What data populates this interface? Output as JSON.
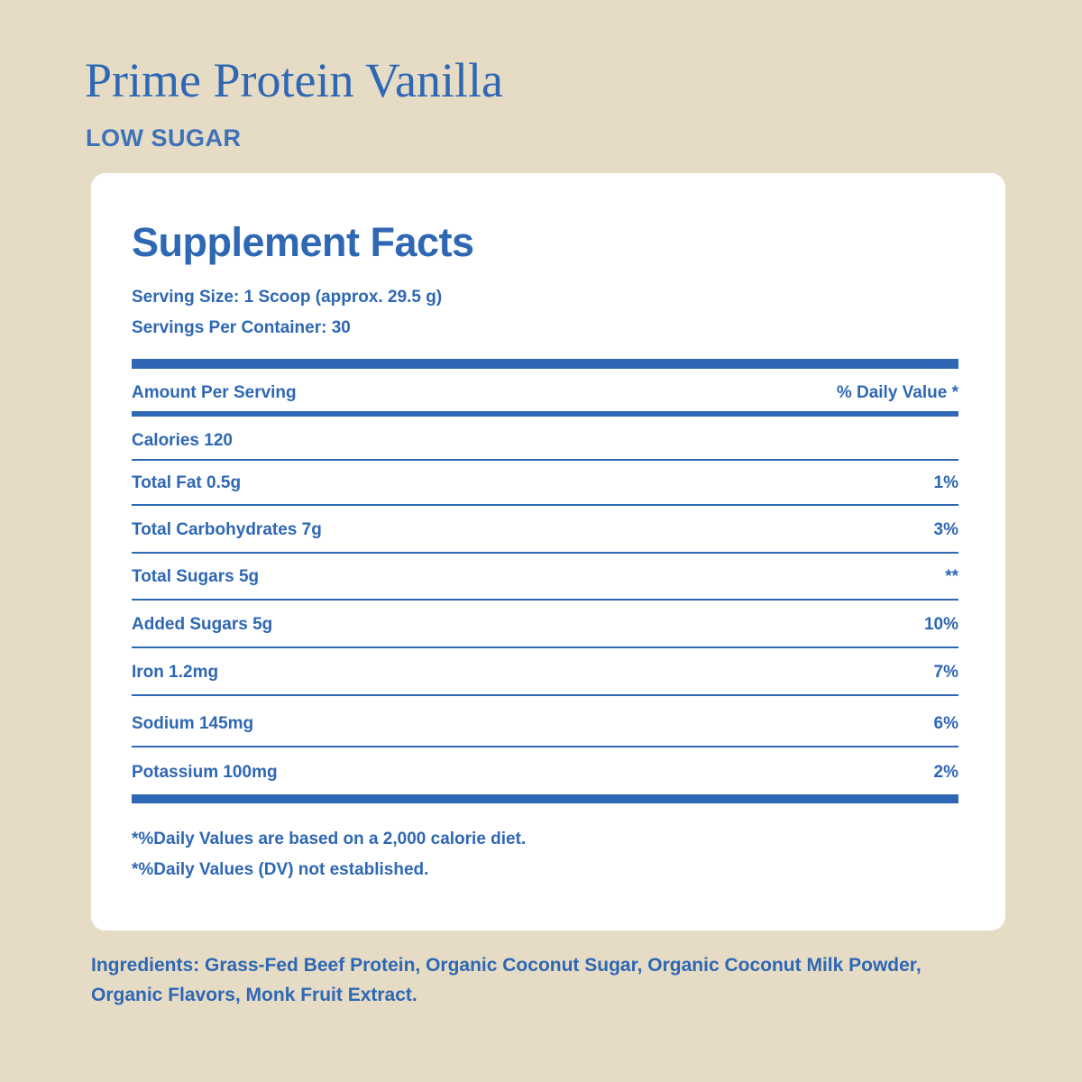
{
  "header": {
    "title": "Prime Protein Vanilla",
    "subtitle": "LOW SUGAR"
  },
  "facts": {
    "title": "Supplement Facts",
    "serving_size": "Serving Size: 1 Scoop (approx. 29.5 g)",
    "servings_per_container": "Servings Per Container: 30",
    "column_left": "Amount Per Serving",
    "column_right": "% Daily Value *",
    "rows": [
      {
        "label": "Calories 120"
      },
      {
        "label": "Total Fat 0.5g",
        "dv": "1%"
      },
      {
        "label": "Total Carbohydrates 7g",
        "dv": "3%"
      },
      {
        "label": "Total Sugars 5g",
        "dv": "**"
      },
      {
        "label": "Added Sugars 5g",
        "dv": "10%"
      },
      {
        "label": "Iron 1.2mg",
        "dv": "7%"
      },
      {
        "label": "Sodium 145mg",
        "dv": "6%"
      },
      {
        "label": "Potassium 100mg",
        "dv": "2%"
      }
    ],
    "footnotes": [
      "*%Daily Values are based on a 2,000 calorie diet.",
      "*%Daily Values (DV) not established."
    ]
  },
  "ingredients": "Ingredients: Grass-Fed Beef Protein, Organic Coconut Sugar, Organic Coconut Milk Powder, Organic Flavors, Monk Fruit Extract."
}
